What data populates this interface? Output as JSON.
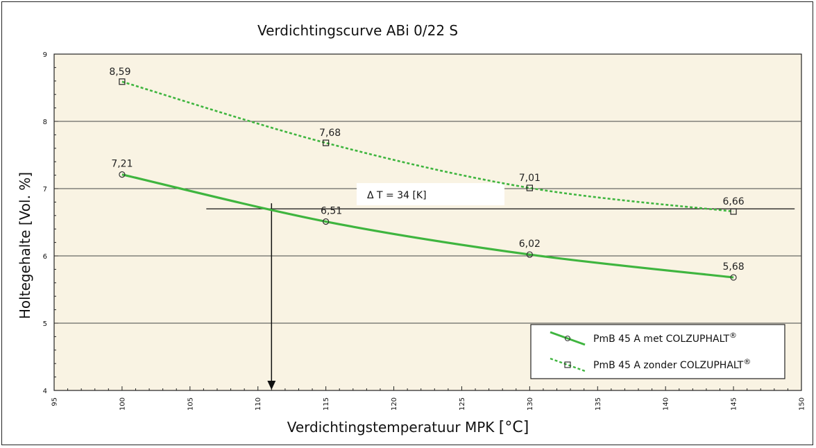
{
  "chart_data": {
    "type": "line",
    "title": "Verdichtingscurve ABi 0/22 S",
    "xlabel": "Verdichtingstemperatuur MPK",
    "xunit": "[°C]",
    "ylabel": "Holtegehalte [Vol. %]",
    "xlim": [
      95,
      150
    ],
    "ylim": [
      4,
      9
    ],
    "xticks": [
      95,
      100,
      105,
      110,
      115,
      120,
      125,
      130,
      135,
      140,
      145,
      150
    ],
    "yticks": [
      4,
      5,
      6,
      7,
      8,
      9
    ],
    "grid": "horizontal",
    "colors": {
      "plot_bg": "#f9f3e3",
      "series": "#3fb53f"
    },
    "series": [
      {
        "name": "PmB 45 A met COLZUPHALT",
        "name_sup": "®",
        "style": "solid",
        "marker": "circle",
        "x": [
          100,
          115,
          130,
          145
        ],
        "y": [
          7.21,
          6.51,
          6.02,
          5.68
        ],
        "labels": [
          "7,21",
          "6,51",
          "6,02",
          "5,68"
        ]
      },
      {
        "name": "PmB 45 A zonder COLZUPHALT",
        "name_sup": "®",
        "style": "dotted",
        "marker": "square",
        "x": [
          100,
          115,
          130,
          145
        ],
        "y": [
          8.59,
          7.68,
          7.01,
          6.66
        ],
        "labels": [
          "8,59",
          "7,68",
          "7,01",
          "6,66"
        ]
      }
    ],
    "annotation": {
      "text": "Δ T = 34 [K]",
      "hline_y": 6.7,
      "hline_x": [
        106.2,
        149.5
      ],
      "arrow_x": 111,
      "arrow_from_y": 6.7,
      "arrow_to_y": 4
    },
    "legend": {
      "position": "bottom-right"
    }
  }
}
